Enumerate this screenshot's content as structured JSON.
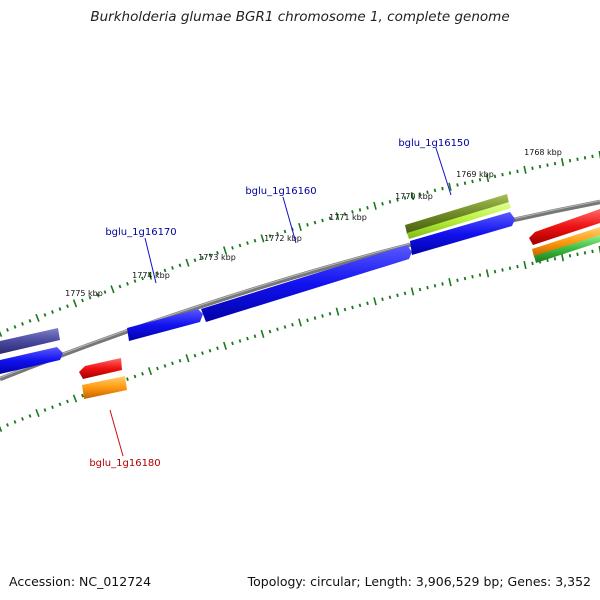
{
  "title": "Burkholderia glumae BGR1 chromosome 1, complete genome",
  "footer": {
    "accession": "Accession: NC_012724",
    "summary": "Topology: circular; Length: 3,906,529 bp; Genes: 3,352"
  },
  "scale_labels": [
    "1768 kbp",
    "1769 kbp",
    "1770 kbp",
    "1771 kbp",
    "1772 kbp",
    "1773 kbp",
    "1774 kbp",
    "1775 kbp"
  ],
  "gene_labels": {
    "g150": "bglu_1g16150",
    "g160": "bglu_1g16160",
    "g170": "bglu_1g16170",
    "g180": "bglu_1g16180"
  },
  "colors": {
    "backbone": "#808080",
    "tick": "#1a7a1a",
    "cds_forward": "#1010ee",
    "cds_reverse": "#ee1111",
    "other_feature": "#4a4aa0",
    "olive_feature": "#6f8a25",
    "lime_feature": "#b6f03a",
    "orange_feature": "#ff9a10",
    "green_feature": "#3dbb3d",
    "label_forward": "#00009b",
    "label_reverse": "#b00000"
  }
}
